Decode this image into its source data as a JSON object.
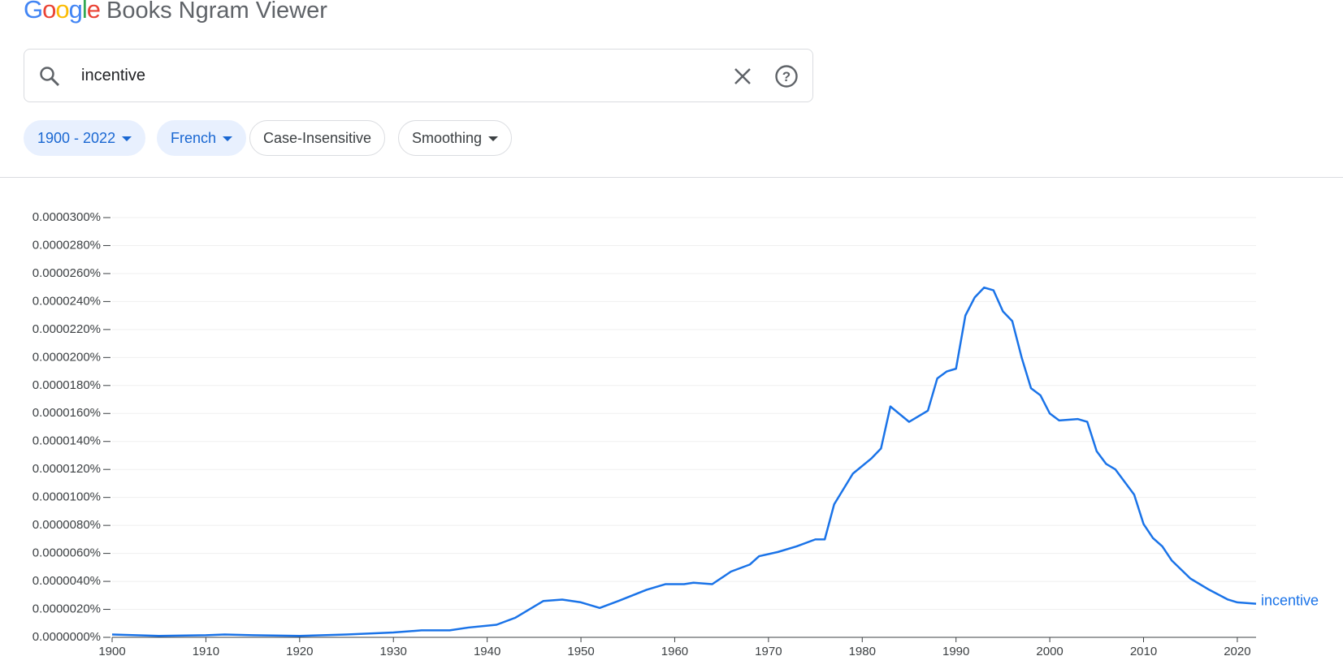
{
  "header": {
    "logo": "Google",
    "product": "Books Ngram Viewer"
  },
  "search": {
    "query": "incentive"
  },
  "chips": {
    "years": "1900 - 2022",
    "corpus": "French",
    "case": "Case-Insensitive",
    "smoothing": "Smoothing"
  },
  "chart_data": {
    "type": "line",
    "grid": true,
    "x": [
      1900,
      1905,
      1910,
      1912,
      1915,
      1920,
      1925,
      1930,
      1933,
      1936,
      1938,
      1941,
      1943,
      1945,
      1946,
      1948,
      1950,
      1952,
      1954,
      1957,
      1959,
      1961,
      1962,
      1964,
      1966,
      1968,
      1969,
      1971,
      1973,
      1975,
      1976,
      1977,
      1979,
      1981,
      1982,
      1983,
      1985,
      1987,
      1988,
      1989,
      1990,
      1991,
      1992,
      1993,
      1994,
      1995,
      1996,
      1997,
      1998,
      1999,
      2000,
      2001,
      2003,
      2004,
      2005,
      2006,
      2007,
      2009,
      2010,
      2011,
      2012,
      2013,
      2015,
      2017,
      2019,
      2020,
      2022
    ],
    "series": [
      {
        "name": "incentive",
        "color": "#1a73e8",
        "values": [
          2e-07,
          1e-07,
          1.5e-07,
          2e-07,
          1.5e-07,
          1e-07,
          2e-07,
          3.5e-07,
          5e-07,
          5e-07,
          7e-07,
          9e-07,
          1.4e-06,
          2.2e-06,
          2.6e-06,
          2.7e-06,
          2.5e-06,
          2.1e-06,
          2.6e-06,
          3.4e-06,
          3.8e-06,
          3.8e-06,
          3.9e-06,
          3.8e-06,
          4.7e-06,
          5.2e-06,
          5.8e-06,
          6.1e-06,
          6.5e-06,
          7e-06,
          7e-06,
          9.5e-06,
          1.17e-05,
          1.28e-05,
          1.35e-05,
          1.65e-05,
          1.54e-05,
          1.62e-05,
          1.85e-05,
          1.9e-05,
          1.92e-05,
          2.3e-05,
          2.43e-05,
          2.5e-05,
          2.48e-05,
          2.33e-05,
          2.26e-05,
          2e-05,
          1.78e-05,
          1.73e-05,
          1.6e-05,
          1.55e-05,
          1.56e-05,
          1.54e-05,
          1.33e-05,
          1.24e-05,
          1.2e-05,
          1.02e-05,
          8.1e-06,
          7.1e-06,
          6.5e-06,
          5.5e-06,
          4.2e-06,
          3.4e-06,
          2.7e-06,
          2.5e-06,
          2.4e-06
        ]
      }
    ],
    "xlim": [
      1900,
      2022
    ],
    "xticks": [
      1900,
      1910,
      1920,
      1930,
      1940,
      1950,
      1960,
      1970,
      1980,
      1990,
      2000,
      2010,
      2020
    ],
    "ylim": [
      0,
      3e-05
    ],
    "yticks": [
      {
        "value": 0,
        "label": "0.0000000%"
      },
      {
        "value": 2e-06,
        "label": "0.0000020%"
      },
      {
        "value": 4e-06,
        "label": "0.0000040%"
      },
      {
        "value": 6e-06,
        "label": "0.0000060%"
      },
      {
        "value": 8e-06,
        "label": "0.0000080%"
      },
      {
        "value": 1e-05,
        "label": "0.0000100%"
      },
      {
        "value": 1.2e-05,
        "label": "0.0000120%"
      },
      {
        "value": 1.4e-05,
        "label": "0.0000140%"
      },
      {
        "value": 1.6e-05,
        "label": "0.0000160%"
      },
      {
        "value": 1.8e-05,
        "label": "0.0000180%"
      },
      {
        "value": 2e-05,
        "label": "0.0000200%"
      },
      {
        "value": 2.2e-05,
        "label": "0.0000220%"
      },
      {
        "value": 2.4e-05,
        "label": "0.0000240%"
      },
      {
        "value": 2.6e-05,
        "label": "0.0000260%"
      },
      {
        "value": 2.8e-05,
        "label": "0.0000280%"
      },
      {
        "value": 3e-05,
        "label": "0.0000300%"
      }
    ]
  }
}
